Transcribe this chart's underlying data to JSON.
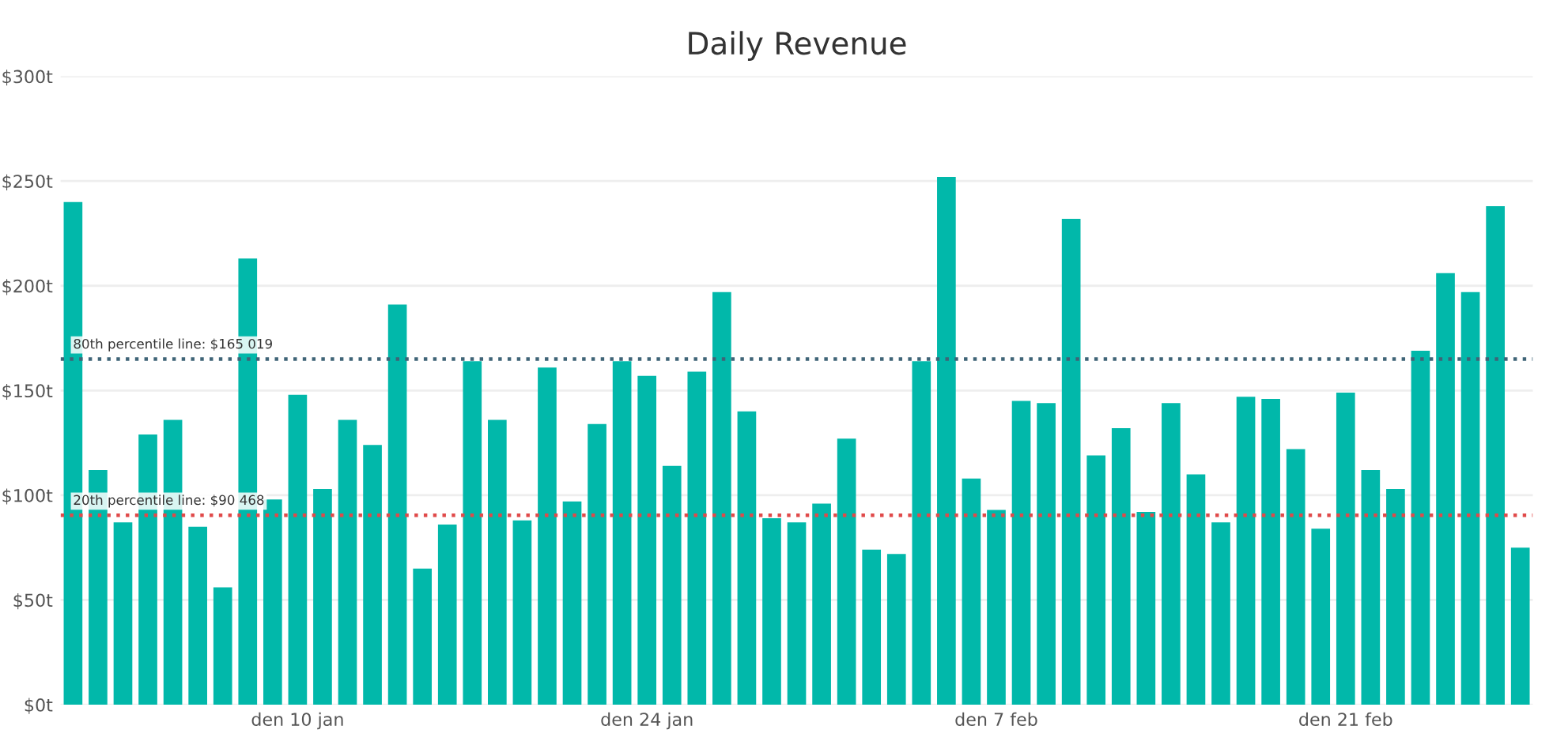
{
  "chart_data": {
    "type": "bar",
    "title": "Daily Revenue",
    "categories": [
      null,
      null,
      null,
      null,
      null,
      null,
      null,
      null,
      null,
      "den 10 jan",
      null,
      null,
      null,
      null,
      null,
      null,
      null,
      null,
      null,
      null,
      null,
      null,
      null,
      "den 24 jan",
      null,
      null,
      null,
      null,
      null,
      null,
      null,
      null,
      null,
      null,
      null,
      null,
      null,
      "den 7 feb",
      null,
      null,
      null,
      null,
      null,
      null,
      null,
      null,
      null,
      null,
      null,
      null,
      null,
      "den 21 feb",
      null,
      null,
      null,
      null,
      null,
      null,
      null
    ],
    "values": [
      240,
      112,
      87,
      129,
      136,
      85,
      56,
      213,
      98,
      148,
      103,
      136,
      124,
      191,
      65,
      86,
      164,
      136,
      88,
      161,
      97,
      134,
      164,
      157,
      114,
      159,
      197,
      140,
      89,
      87,
      96,
      127,
      74,
      72,
      164,
      252,
      108,
      93,
      145,
      144,
      232,
      119,
      132,
      92,
      144,
      110,
      87,
      147,
      146,
      122,
      84,
      149,
      112,
      103,
      169,
      206,
      197,
      238,
      75
    ],
    "color": "#01b8aa",
    "ylim": [
      0,
      300
    ],
    "yticks": [
      {
        "value": 0,
        "label": "$0t"
      },
      {
        "value": 50,
        "label": "$50t"
      },
      {
        "value": 100,
        "label": "$100t"
      },
      {
        "value": 150,
        "label": "$150t"
      },
      {
        "value": 200,
        "label": "$200t"
      },
      {
        "value": 250,
        "label": "$250t"
      },
      {
        "value": 300,
        "label": "$300t"
      }
    ],
    "grid": "y",
    "ref_lines": [
      {
        "axis": "y",
        "value": 165.019,
        "label": "80th percentile line: $165 019",
        "color": "#3f6477",
        "line_style": "dotted"
      },
      {
        "axis": "y",
        "value": 90.468,
        "label": "20th percentile line: $90 468",
        "color": "#e04a4a",
        "line_style": "dotted"
      }
    ]
  }
}
